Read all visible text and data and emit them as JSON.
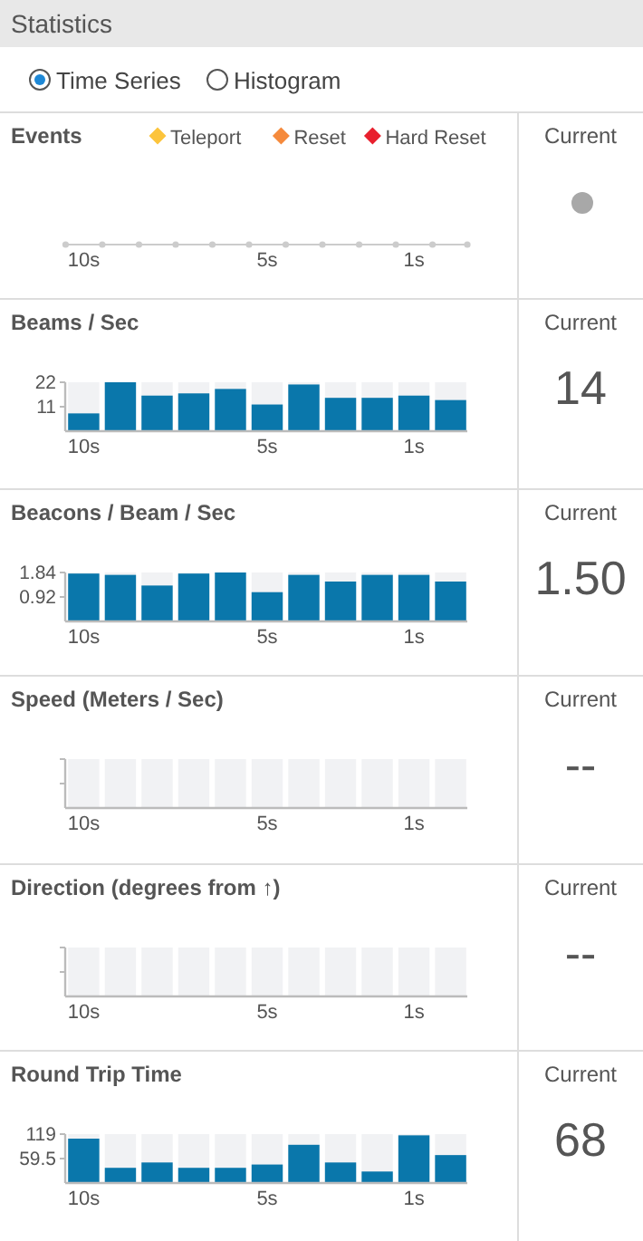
{
  "chart_data": [
    {
      "type": "other",
      "title": "Statistics",
      "annotations": [
        "Time Series",
        "Histogram"
      ]
    },
    {
      "type": "other",
      "title": "Events",
      "categories": [
        "10s",
        null,
        null,
        null,
        null,
        "5s",
        null,
        null,
        null,
        "1s",
        null
      ],
      "legend": "top",
      "series": [
        {
          "name": "Teleport",
          "color": "#fcc43c",
          "values": [
            null,
            null,
            null,
            null,
            null,
            null,
            null,
            null,
            null,
            null,
            null
          ]
        },
        {
          "name": "Reset",
          "color": "#f58a3c",
          "values": [
            null,
            null,
            null,
            null,
            null,
            null,
            null,
            null,
            null,
            null,
            null
          ]
        },
        {
          "name": "Hard Reset",
          "color": "#e8202e",
          "values": [
            null,
            null,
            null,
            null,
            null,
            null,
            null,
            null,
            null,
            null,
            null
          ]
        }
      ],
      "annotations": [
        "Current"
      ]
    },
    {
      "type": "bar",
      "title": "Beams / Sec",
      "categories": [
        "10s",
        null,
        null,
        null,
        null,
        "5s",
        null,
        null,
        null,
        "1s",
        null
      ],
      "color": "#0a77ab",
      "values": [
        8,
        22,
        16,
        17,
        19,
        12,
        21,
        15,
        15,
        16,
        14
      ],
      "ylim": [
        0,
        22
      ],
      "yticks": [
        22,
        11
      ],
      "annotations": [
        "Current",
        "14"
      ]
    },
    {
      "type": "bar",
      "title": "Beacons / Beam / Sec",
      "categories": [
        "10s",
        null,
        null,
        null,
        null,
        "5s",
        null,
        null,
        null,
        "1s",
        null
      ],
      "color": "#0a77ab",
      "values": [
        1.8,
        1.75,
        1.35,
        1.8,
        1.84,
        1.1,
        1.75,
        1.5,
        1.75,
        1.75,
        1.5
      ],
      "ylim": [
        0,
        1.84
      ],
      "yticks": [
        1.84,
        0.92
      ],
      "annotations": [
        "Current",
        "1.50"
      ]
    },
    {
      "type": "other",
      "title": "Speed (Meters / Sec)",
      "categories": [
        "10s",
        null,
        null,
        null,
        null,
        "5s",
        null,
        null,
        null,
        "1s",
        null
      ],
      "annotations": [
        "Current",
        "--"
      ]
    },
    {
      "type": "other",
      "title": "Direction (degrees from ↑)",
      "categories": [
        "10s",
        null,
        null,
        null,
        null,
        "5s",
        null,
        null,
        null,
        "1s",
        null
      ],
      "annotations": [
        "Current",
        "--"
      ]
    },
    {
      "type": "bar",
      "title": "Round Trip Time",
      "categories": [
        "10s",
        null,
        null,
        null,
        null,
        "5s",
        null,
        null,
        null,
        "1s",
        null
      ],
      "color": "#0a77ab",
      "values": [
        108,
        37,
        50,
        37,
        37,
        45,
        93,
        50,
        28,
        116,
        68
      ],
      "ylim": [
        0,
        119
      ],
      "yticks": [
        119,
        59.5
      ],
      "annotations": [
        "Current",
        "68"
      ]
    }
  ]
}
